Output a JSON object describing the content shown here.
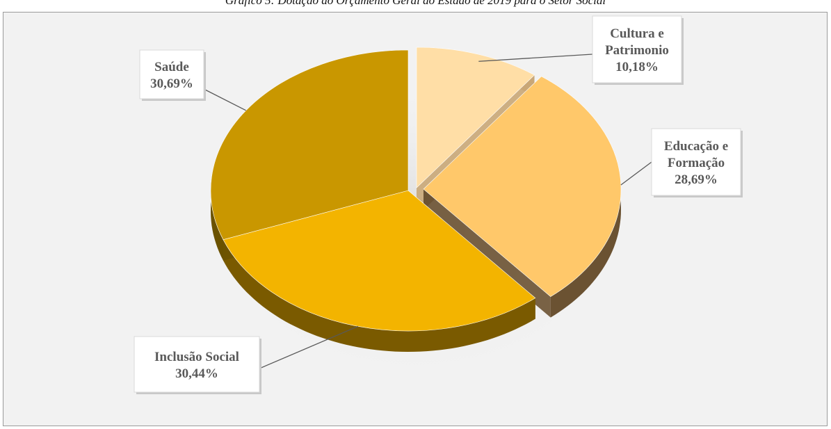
{
  "caption": "Gráfico 5: Dotação do Orçamento Geral do Estado de 2019 para o Setor Social",
  "chart_data": {
    "type": "pie",
    "title": "",
    "slices": [
      {
        "name_lines": [
          "Cultura e",
          "Patrimonio"
        ],
        "value_label": "10,18%",
        "value": 10.18,
        "color": "#ffdea6",
        "side": "#c9a777"
      },
      {
        "name_lines": [
          "Educação e",
          "Formação"
        ],
        "value_label": "28,69%",
        "value": 28.69,
        "color": "#ffc86a",
        "side": "#6b5232"
      },
      {
        "name_lines": [
          "Inclusão Social"
        ],
        "value_label": "30,44%",
        "value": 30.44,
        "color": "#f3b400",
        "side": "#7a5a00"
      },
      {
        "name_lines": [
          "Saúde"
        ],
        "value_label": "30,69%",
        "value": 30.69,
        "color": "#c99700",
        "side": "#6b5200"
      }
    ]
  }
}
